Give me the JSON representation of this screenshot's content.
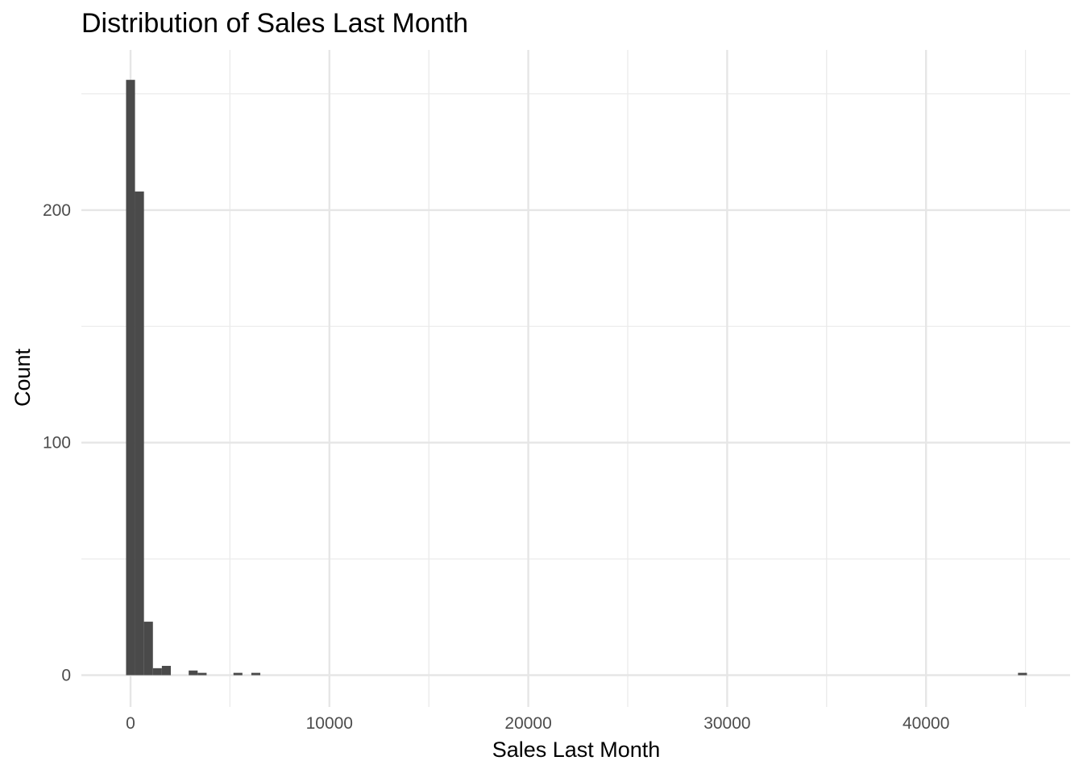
{
  "chart_data": {
    "type": "bar",
    "title": "Distribution of Sales Last Month",
    "xlabel": "Sales Last Month",
    "ylabel": "Count",
    "xlim": [
      -2500,
      47500
    ],
    "ylim": [
      -10,
      255
    ],
    "x_ticks": [
      0,
      10000,
      20000,
      30000,
      40000
    ],
    "x_tick_labels": [
      "0",
      "10000",
      "20000",
      "30000",
      "40000"
    ],
    "y_ticks": [
      0,
      100,
      200
    ],
    "y_tick_labels": [
      "0",
      "100",
      "200"
    ],
    "bin_width": 450,
    "bins": [
      {
        "x": 0,
        "count": 256
      },
      {
        "x": 450,
        "count": 208
      },
      {
        "x": 900,
        "count": 23
      },
      {
        "x": 1350,
        "count": 3
      },
      {
        "x": 1800,
        "count": 4
      },
      {
        "x": 3150,
        "count": 2
      },
      {
        "x": 3600,
        "count": 1
      },
      {
        "x": 5400,
        "count": 1
      },
      {
        "x": 6300,
        "count": 1
      },
      {
        "x": 44850,
        "count": 1
      }
    ],
    "bar_color": "#4a4a4a",
    "grid": true,
    "legend": "none"
  }
}
